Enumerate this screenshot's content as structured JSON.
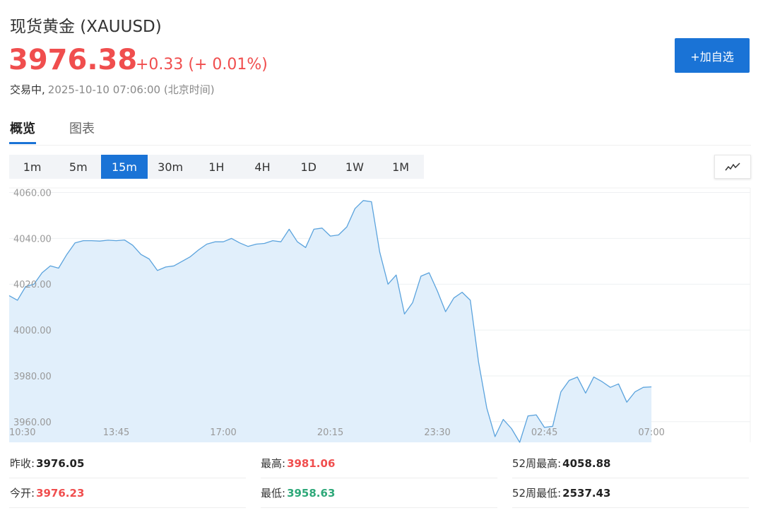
{
  "header": {
    "title": "现货黄金 (XAUUSD)",
    "price": "3976.38",
    "change": "+0.33 (+ 0.01%)",
    "status": "交易中,",
    "datetime": "2025-10-10 07:06:00 (北京时间)",
    "add_button": "+加自选"
  },
  "colors": {
    "up": "#f04e4e",
    "down": "#2ea879",
    "accent": "#1a73d6",
    "line": "#5ba3dd",
    "fill": "#e1effb"
  },
  "tabs": [
    {
      "label": "概览",
      "active": true
    },
    {
      "label": "图表",
      "active": false
    }
  ],
  "periods": [
    "1m",
    "5m",
    "15m",
    "30m",
    "1H",
    "4H",
    "1D",
    "1W",
    "1M"
  ],
  "selected_period": "15m",
  "chart_type_icon": "line-chart-icon",
  "chart_data": {
    "type": "area",
    "ylim": [
      3951,
      4062
    ],
    "yticks": [
      4060,
      4040,
      4020,
      4000,
      3980,
      3960
    ],
    "ytick_labels": [
      "4060.00",
      "4040.00",
      "4020.00",
      "4000.00",
      "3980.00",
      "3960.00"
    ],
    "xlim": [
      0,
      22.5
    ],
    "xticks": [
      0,
      3.25,
      6.5,
      9.75,
      13,
      16.25,
      19.5
    ],
    "xtick_labels": [
      "10:30",
      "13:45",
      "17:00",
      "20:15",
      "23:30",
      "02:45",
      "07:00"
    ],
    "grid": true,
    "series": [
      {
        "x": [
          0,
          0.25,
          0.5,
          0.75,
          1.0,
          1.25,
          1.5,
          1.75,
          2.0,
          2.25,
          2.5,
          2.75,
          3.0,
          3.25,
          3.5,
          3.75,
          4.0,
          4.25,
          4.5,
          4.75,
          5.0,
          5.25,
          5.5,
          5.75,
          6.0,
          6.25,
          6.5,
          6.75,
          7.0,
          7.25,
          7.5,
          7.75,
          8.0,
          8.25,
          8.5,
          8.75,
          9.0,
          9.25,
          9.5,
          9.75,
          10.0,
          10.25,
          10.5,
          10.75,
          11.0,
          11.25,
          11.5,
          11.75,
          12.0,
          12.25,
          12.5,
          12.75,
          13.0,
          13.25,
          13.5,
          13.75,
          14.0,
          14.25,
          14.5,
          14.75,
          15.0,
          15.25,
          15.5,
          15.75,
          16.0,
          16.25,
          16.5,
          16.75,
          17.0,
          17.25,
          17.5,
          17.75,
          18.0,
          18.25,
          18.5,
          18.75,
          19.0,
          19.25,
          19.5
        ],
        "values": [
          4015,
          4013,
          4019,
          4020,
          4025,
          4028,
          4027,
          4033,
          4038,
          4039,
          4039,
          4038.8,
          4039.2,
          4039,
          4039.3,
          4037,
          4033,
          4031,
          4026,
          4027.5,
          4028,
          4030,
          4032,
          4035,
          4037.5,
          4038.5,
          4038.5,
          4040,
          4038,
          4036.5,
          4037.5,
          4037.8,
          4039,
          4038.5,
          4044,
          4038.5,
          4036,
          4044,
          4044.5,
          4041,
          4041.5,
          4045,
          4053,
          4056.5,
          4056,
          4034,
          4020,
          4024,
          4007,
          4012,
          4023.5,
          4025,
          4017,
          4008,
          4014,
          4016.5,
          4013,
          3986,
          3966,
          3953.5,
          3961,
          3957,
          3951,
          3962.5,
          3963,
          3957.5,
          3958,
          3973,
          3978,
          3979.5,
          3972.5,
          3979.5,
          3977.5,
          3975,
          3976.5,
          3968.5,
          3973,
          3975,
          3975.2
        ]
      }
    ]
  },
  "stats": [
    {
      "label": "昨收:",
      "value": "3976.05",
      "trend": "neutral"
    },
    {
      "label": "最高:",
      "value": "3981.06",
      "trend": "up"
    },
    {
      "label": "52周最高:",
      "value": "4058.88",
      "trend": "neutral"
    },
    {
      "label": "今开:",
      "value": "3976.23",
      "trend": "up"
    },
    {
      "label": "最低:",
      "value": "3958.63",
      "trend": "down"
    },
    {
      "label": "52周最低:",
      "value": "2537.43",
      "trend": "neutral"
    }
  ]
}
